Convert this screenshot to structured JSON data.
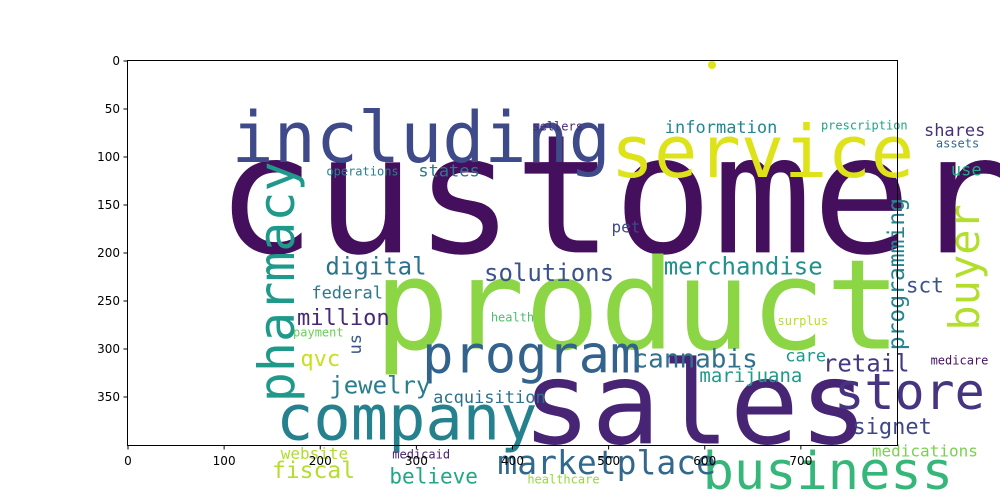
{
  "chart_data": {
    "type": "wordcloud",
    "title": "",
    "xlabel": "",
    "ylabel": "",
    "xlim": [
      0,
      800
    ],
    "ylim": [
      400,
      0
    ],
    "x_ticks": [
      0,
      100,
      200,
      300,
      400,
      500,
      600,
      700
    ],
    "y_ticks": [
      0,
      50,
      100,
      150,
      200,
      250,
      300,
      350
    ],
    "grid": false,
    "words": [
      {
        "text": "customer",
        "x": 505,
        "y": 140,
        "size": 165,
        "rot": 0,
        "color": "#440f5c"
      },
      {
        "text": "product",
        "x": 530,
        "y": 255,
        "size": 125,
        "rot": 0,
        "color": "#8cd645"
      },
      {
        "text": "sales",
        "x": 590,
        "y": 358,
        "size": 115,
        "rot": 0,
        "color": "#482475"
      },
      {
        "text": "service",
        "x": 660,
        "y": 95,
        "size": 72,
        "rot": 0,
        "color": "#dde318"
      },
      {
        "text": "including",
        "x": 305,
        "y": 80,
        "size": 70,
        "rot": 0,
        "color": "#3e4a89"
      },
      {
        "text": "company",
        "x": 290,
        "y": 372,
        "size": 62,
        "rot": 0,
        "color": "#26818e"
      },
      {
        "text": "program",
        "x": 420,
        "y": 307,
        "size": 52,
        "rot": 0,
        "color": "#33638d"
      },
      {
        "text": "business",
        "x": 728,
        "y": 428,
        "size": 52,
        "rot": 0,
        "color": "#35b779"
      },
      {
        "text": "store",
        "x": 813,
        "y": 345,
        "size": 50,
        "rot": 0,
        "color": "#463480"
      },
      {
        "text": "pharmacy",
        "x": 155,
        "y": 230,
        "size": 50,
        "rot": -90,
        "color": "#1f998a"
      },
      {
        "text": "buyer",
        "x": 870,
        "y": 215,
        "size": 42,
        "rot": -90,
        "color": "#b4de2c"
      },
      {
        "text": "marketplace",
        "x": 498,
        "y": 418,
        "size": 33,
        "rot": 0,
        "color": "#31688e"
      },
      {
        "text": "cannabis",
        "x": 590,
        "y": 311,
        "size": 26,
        "rot": 0,
        "color": "#30708e"
      },
      {
        "text": "solutions",
        "x": 438,
        "y": 221,
        "size": 24,
        "rot": 0,
        "color": "#3b528b"
      },
      {
        "text": "merchandise",
        "x": 640,
        "y": 214,
        "size": 24,
        "rot": 0,
        "color": "#21918c"
      },
      {
        "text": "programming",
        "x": 800,
        "y": 222,
        "size": 23,
        "rot": -90,
        "color": "#25848e"
      },
      {
        "text": "digital",
        "x": 258,
        "y": 214,
        "size": 24,
        "rot": 0,
        "color": "#2c728e"
      },
      {
        "text": "jewelry",
        "x": 262,
        "y": 338,
        "size": 24,
        "rot": 0,
        "color": "#287d8e"
      },
      {
        "text": "million",
        "x": 224,
        "y": 268,
        "size": 22,
        "rot": 0,
        "color": "#482979"
      },
      {
        "text": "retail",
        "x": 768,
        "y": 315,
        "size": 24,
        "rot": 0,
        "color": "#453781"
      },
      {
        "text": "signet",
        "x": 795,
        "y": 382,
        "size": 22,
        "rot": 0,
        "color": "#3f4788"
      },
      {
        "text": "believe",
        "x": 318,
        "y": 433,
        "size": 21,
        "rot": 0,
        "color": "#22a785"
      },
      {
        "text": "fiscal",
        "x": 193,
        "y": 427,
        "size": 23,
        "rot": 0,
        "color": "#b5de2b"
      },
      {
        "text": "qvc",
        "x": 200,
        "y": 311,
        "size": 22,
        "rot": 0,
        "color": "#c8e020"
      },
      {
        "text": "marijuana",
        "x": 648,
        "y": 328,
        "size": 19,
        "rot": 0,
        "color": "#1e9b8a"
      },
      {
        "text": "acquisition",
        "x": 376,
        "y": 351,
        "size": 17,
        "rot": 0,
        "color": "#2d708e"
      },
      {
        "text": "information",
        "x": 617,
        "y": 70,
        "size": 17,
        "rot": 0,
        "color": "#24868e"
      },
      {
        "text": "states",
        "x": 334,
        "y": 115,
        "size": 17,
        "rot": 0,
        "color": "#2a778e"
      },
      {
        "text": "shares",
        "x": 860,
        "y": 73,
        "size": 17,
        "rot": 0,
        "color": "#46307e"
      },
      {
        "text": "federal",
        "x": 228,
        "y": 242,
        "size": 17,
        "rot": 0,
        "color": "#2a788e"
      },
      {
        "text": "sct",
        "x": 829,
        "y": 234,
        "size": 21,
        "rot": 0,
        "color": "#3b528b"
      },
      {
        "text": "medications",
        "x": 829,
        "y": 406,
        "size": 16,
        "rot": 0,
        "color": "#7ad151"
      },
      {
        "text": "care",
        "x": 705,
        "y": 308,
        "size": 17,
        "rot": 0,
        "color": "#1f978b"
      },
      {
        "text": "us",
        "x": 237,
        "y": 295,
        "size": 17,
        "rot": -90,
        "color": "#39558c"
      },
      {
        "text": "use",
        "x": 872,
        "y": 114,
        "size": 17,
        "rot": 0,
        "color": "#23a983"
      },
      {
        "text": "website",
        "x": 194,
        "y": 409,
        "size": 16,
        "rot": 0,
        "color": "#b0dd2f"
      },
      {
        "text": "pet",
        "x": 518,
        "y": 173,
        "size": 16,
        "rot": 0,
        "color": "#3e4989"
      },
      {
        "text": "operations",
        "x": 244,
        "y": 115,
        "size": 12,
        "rot": 0,
        "color": "#277f8e"
      },
      {
        "text": "sellers",
        "x": 447,
        "y": 68,
        "size": 12,
        "rot": 0,
        "color": "#482878"
      },
      {
        "text": "prescription",
        "x": 766,
        "y": 67,
        "size": 12,
        "rot": 0,
        "color": "#20a386"
      },
      {
        "text": "assets",
        "x": 863,
        "y": 86,
        "size": 12,
        "rot": 0,
        "color": "#31688e"
      },
      {
        "text": "health",
        "x": 400,
        "y": 267,
        "size": 12,
        "rot": 0,
        "color": "#4ac16d"
      },
      {
        "text": "surplus",
        "x": 702,
        "y": 271,
        "size": 12,
        "rot": 0,
        "color": "#b5de2b"
      },
      {
        "text": "payment",
        "x": 198,
        "y": 283,
        "size": 12,
        "rot": 0,
        "color": "#6ccd5a"
      },
      {
        "text": "medicare",
        "x": 865,
        "y": 312,
        "size": 12,
        "rot": 0,
        "color": "#471365"
      },
      {
        "text": "medicaid",
        "x": 305,
        "y": 410,
        "size": 12,
        "rot": 0,
        "color": "#482071"
      },
      {
        "text": "healthcare",
        "x": 453,
        "y": 436,
        "size": 12,
        "rot": 0,
        "color": "#95d840"
      }
    ]
  }
}
